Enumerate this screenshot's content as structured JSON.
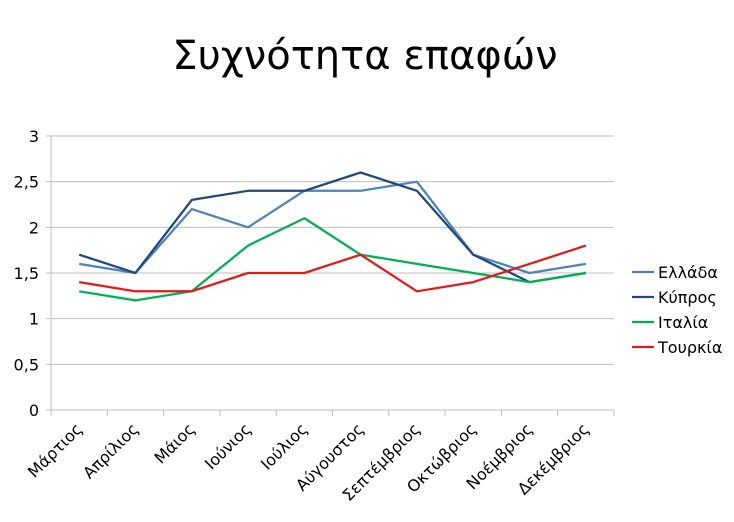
{
  "chart_data": {
    "type": "line",
    "title": "Συχνότητα επαφών",
    "xlabel": "",
    "ylabel": "",
    "ylim": [
      0,
      3
    ],
    "yticks": [
      "0",
      "0,5",
      "1",
      "1,5",
      "2",
      "2,5",
      "3"
    ],
    "grid": true,
    "legend_position": "right",
    "categories": [
      "Μάρτιος",
      "Απρίλιος",
      "Μάιος",
      "Ιούνιος",
      "Ιούλιος",
      "Αύγουστος",
      "Σεπτέμβριος",
      "Οκτώβριος",
      "Νοέμβριος",
      "Δεκέμβριος"
    ],
    "series": [
      {
        "name": "Ελλάδα",
        "color": "#4F81BD",
        "values": [
          1.6,
          1.5,
          2.2,
          2.0,
          2.4,
          2.4,
          2.5,
          1.7,
          1.5,
          1.6
        ]
      },
      {
        "name": "Κύπρος",
        "color": "#1F497D",
        "values": [
          1.7,
          1.5,
          2.3,
          2.4,
          2.4,
          2.6,
          2.4,
          1.7,
          1.4,
          1.5
        ]
      },
      {
        "name": "Ιταλία",
        "color": "#00B050",
        "values": [
          1.3,
          1.2,
          1.3,
          1.8,
          2.1,
          1.7,
          1.6,
          1.5,
          1.4,
          1.5
        ]
      },
      {
        "name": "Τουρκία",
        "color": "#E31A1C",
        "values": [
          1.4,
          1.3,
          1.3,
          1.5,
          1.5,
          1.7,
          1.3,
          1.4,
          1.6,
          1.8
        ]
      }
    ]
  }
}
